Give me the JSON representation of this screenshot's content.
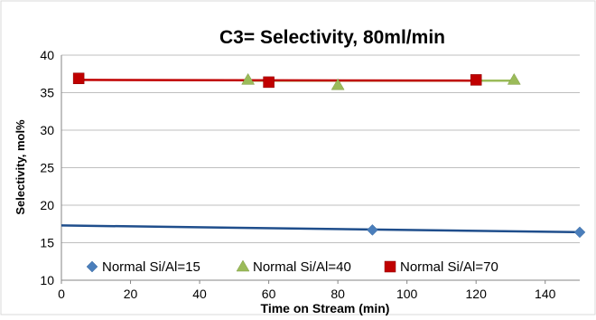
{
  "chart_data": {
    "type": "scatter",
    "title": "C3= Selectivity, 80ml/min",
    "xlabel": "Time on Stream (min)",
    "ylabel": "Selectivity, mol%",
    "xlim": [
      0,
      150
    ],
    "ylim": [
      10,
      40
    ],
    "x_ticks": [
      0,
      20,
      40,
      60,
      80,
      100,
      120,
      140
    ],
    "y_ticks": [
      10,
      15,
      20,
      25,
      30,
      35,
      40
    ],
    "grid": "horizontal",
    "legend_position": "bottom-inside",
    "series": [
      {
        "name": "Normal Si/Al=15",
        "marker": "diamond",
        "color": "#4a7ebb",
        "line_color": "#1f4e8c",
        "x": [
          90,
          150
        ],
        "y": [
          16.7,
          16.4
        ],
        "trendline": {
          "x": [
            0,
            150
          ],
          "y": [
            17.3,
            16.4
          ]
        }
      },
      {
        "name": "Normal Si/Al=40",
        "marker": "triangle",
        "color": "#9bbb59",
        "line_color": "#9bbb59",
        "x": [
          54,
          80,
          131
        ],
        "y": [
          36.7,
          36.0,
          36.7
        ],
        "trendline": {
          "x": [
            54,
            131
          ],
          "y": [
            36.6,
            36.6
          ]
        }
      },
      {
        "name": "Normal Si/Al=70",
        "marker": "square",
        "color": "#c00000",
        "line_color": "#c00000",
        "x": [
          5,
          60,
          120
        ],
        "y": [
          36.9,
          36.4,
          36.7
        ],
        "trendline": {
          "x": [
            5,
            120
          ],
          "y": [
            36.7,
            36.6
          ]
        }
      }
    ]
  }
}
